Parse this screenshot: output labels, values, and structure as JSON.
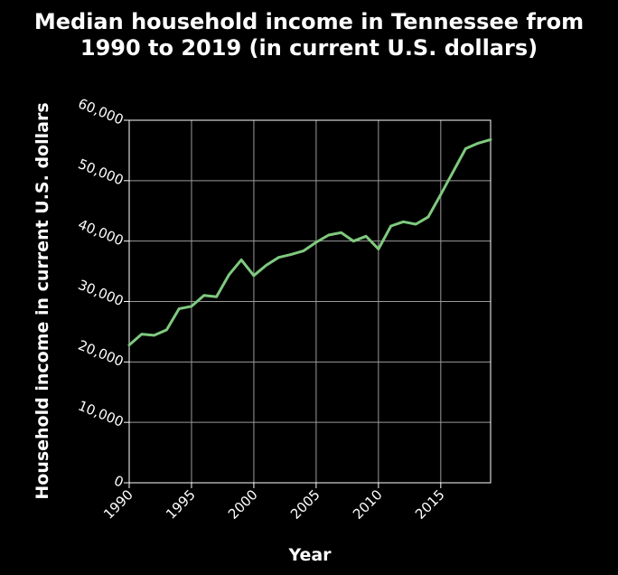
{
  "chart_data": {
    "type": "line",
    "title_lines": [
      "Median household income in Tennessee from",
      "1990 to 2019 (in current U.S. dollars)"
    ],
    "xlabel": "Year",
    "ylabel": "Household income in current U.S. dollars",
    "xlim": [
      1990,
      2019
    ],
    "ylim": [
      0,
      60000
    ],
    "x_ticks": [
      1990,
      1995,
      2000,
      2005,
      2010,
      2015
    ],
    "x_tick_labels": [
      "1990",
      "1995",
      "2000",
      "2005",
      "2010",
      "2015"
    ],
    "y_ticks": [
      0,
      10000,
      20000,
      30000,
      40000,
      50000,
      60000
    ],
    "y_tick_labels": [
      "0",
      "10,000",
      "20,000",
      "30,000",
      "40,000",
      "50,000",
      "60,000"
    ],
    "grid": true,
    "line_color": "#7fc97f",
    "background": "#000000",
    "series": [
      {
        "x": [
          1990,
          1991,
          1992,
          1993,
          1994,
          1995,
          1996,
          1997,
          1998,
          1999,
          2000,
          2001,
          2002,
          2003,
          2004,
          2005,
          2006,
          2007,
          2008,
          2009,
          2010,
          2011,
          2012,
          2013,
          2014,
          2015,
          2016,
          2017,
          2018,
          2019
        ],
        "values": [
          22800,
          24600,
          24400,
          25300,
          28800,
          29200,
          31000,
          30800,
          34400,
          36900,
          34300,
          36000,
          37300,
          37800,
          38400,
          39800,
          41000,
          41400,
          40000,
          40800,
          38700,
          42500,
          43200,
          42800,
          44000,
          47700,
          51500,
          55300,
          56200,
          56800
        ]
      }
    ]
  }
}
